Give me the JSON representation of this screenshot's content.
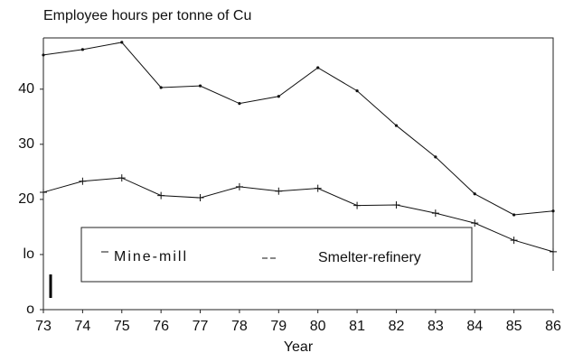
{
  "chart_data": {
    "type": "line",
    "title": "Employee hours per tonne of Cu",
    "x_label": "Year",
    "x": [
      73,
      74,
      75,
      76,
      77,
      78,
      79,
      80,
      81,
      82,
      83,
      84,
      85,
      86
    ],
    "series": [
      {
        "name": "Mine-mill",
        "color": "#111111",
        "marker": "dot",
        "values": [
          46.2,
          47.2,
          48.5,
          40.3,
          40.6,
          37.4,
          38.7,
          43.9,
          39.7,
          33.4,
          27.7,
          21.0,
          17.2,
          17.9
        ]
      },
      {
        "name": "Smelter-refinery",
        "color": "#111111",
        "marker": "plus",
        "values": [
          21.3,
          23.3,
          23.9,
          20.7,
          20.3,
          22.3,
          21.5,
          22.0,
          18.9,
          19.0,
          17.5,
          15.7,
          12.6,
          10.5
        ]
      }
    ],
    "xlim": [
      73,
      86
    ],
    "xticks": [
      73,
      74,
      75,
      76,
      77,
      78,
      79,
      80,
      81,
      82,
      83,
      84,
      85,
      86
    ],
    "ylim": [
      0,
      49.3
    ],
    "yticks": [
      {
        "value": 0,
        "label": "o"
      },
      {
        "value": 10,
        "label": "lo"
      },
      20,
      30,
      40
    ],
    "grid": false,
    "legend": "bottom"
  }
}
